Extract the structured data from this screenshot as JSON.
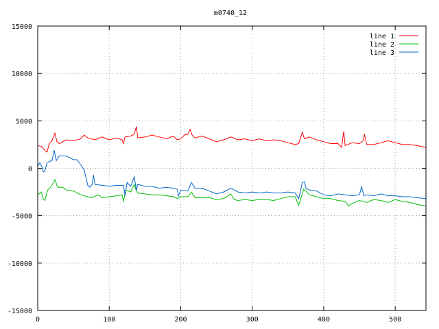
{
  "chart_data": {
    "type": "line",
    "title": "m0740_12",
    "xlabel": "",
    "ylabel": "",
    "xlim": [
      0,
      543
    ],
    "ylim": [
      -15000,
      15000
    ],
    "xticks": [
      0,
      100,
      200,
      300,
      400,
      500
    ],
    "yticks": [
      -15000,
      -10000,
      -5000,
      0,
      5000,
      10000,
      15000
    ],
    "grid": true,
    "legend_position": "top-right",
    "series": [
      {
        "name": "line 1",
        "color": "#ff0000",
        "points": [
          [
            0,
            2400
          ],
          [
            5,
            2300
          ],
          [
            10,
            1900
          ],
          [
            13,
            1700
          ],
          [
            16,
            2600
          ],
          [
            20,
            2900
          ],
          [
            24,
            3700
          ],
          [
            27,
            2800
          ],
          [
            30,
            2600
          ],
          [
            40,
            3000
          ],
          [
            50,
            2900
          ],
          [
            60,
            3100
          ],
          [
            65,
            3500
          ],
          [
            70,
            3200
          ],
          [
            80,
            3000
          ],
          [
            90,
            3300
          ],
          [
            100,
            3000
          ],
          [
            110,
            3200
          ],
          [
            118,
            3000
          ],
          [
            120,
            2600
          ],
          [
            122,
            3300
          ],
          [
            130,
            3400
          ],
          [
            135,
            3600
          ],
          [
            138,
            4400
          ],
          [
            140,
            3200
          ],
          [
            150,
            3300
          ],
          [
            160,
            3500
          ],
          [
            170,
            3300
          ],
          [
            180,
            3100
          ],
          [
            190,
            3400
          ],
          [
            195,
            3000
          ],
          [
            200,
            3100
          ],
          [
            205,
            3500
          ],
          [
            210,
            3600
          ],
          [
            213,
            4100
          ],
          [
            216,
            3500
          ],
          [
            220,
            3200
          ],
          [
            230,
            3400
          ],
          [
            240,
            3100
          ],
          [
            250,
            2800
          ],
          [
            260,
            3000
          ],
          [
            270,
            3300
          ],
          [
            280,
            3000
          ],
          [
            290,
            3100
          ],
          [
            300,
            2900
          ],
          [
            310,
            3100
          ],
          [
            320,
            2900
          ],
          [
            330,
            3000
          ],
          [
            340,
            2900
          ],
          [
            350,
            2700
          ],
          [
            360,
            2500
          ],
          [
            365,
            2600
          ],
          [
            370,
            3800
          ],
          [
            373,
            3100
          ],
          [
            380,
            3300
          ],
          [
            390,
            3000
          ],
          [
            400,
            2800
          ],
          [
            410,
            2600
          ],
          [
            420,
            2600
          ],
          [
            425,
            2200
          ],
          [
            428,
            3900
          ],
          [
            430,
            2400
          ],
          [
            440,
            2700
          ],
          [
            450,
            2600
          ],
          [
            455,
            2900
          ],
          [
            457,
            3600
          ],
          [
            460,
            2500
          ],
          [
            470,
            2500
          ],
          [
            480,
            2700
          ],
          [
            490,
            2900
          ],
          [
            500,
            2700
          ],
          [
            510,
            2500
          ],
          [
            520,
            2500
          ],
          [
            530,
            2400
          ],
          [
            543,
            2200
          ]
        ]
      },
      {
        "name": "line 2",
        "color": "#00bb00",
        "points": [
          [
            0,
            -2800
          ],
          [
            5,
            -2500
          ],
          [
            8,
            -3300
          ],
          [
            10,
            -3400
          ],
          [
            14,
            -2300
          ],
          [
            18,
            -2000
          ],
          [
            22,
            -1500
          ],
          [
            24,
            -1200
          ],
          [
            28,
            -2000
          ],
          [
            35,
            -2000
          ],
          [
            40,
            -2300
          ],
          [
            50,
            -2400
          ],
          [
            60,
            -2800
          ],
          [
            70,
            -3000
          ],
          [
            75,
            -3100
          ],
          [
            78,
            -3000
          ],
          [
            85,
            -2800
          ],
          [
            90,
            -3100
          ],
          [
            100,
            -3000
          ],
          [
            110,
            -2900
          ],
          [
            118,
            -2800
          ],
          [
            120,
            -3500
          ],
          [
            123,
            -2300
          ],
          [
            130,
            -2500
          ],
          [
            135,
            -1700
          ],
          [
            137,
            -2200
          ],
          [
            140,
            -2600
          ],
          [
            150,
            -2700
          ],
          [
            160,
            -2800
          ],
          [
            170,
            -2800
          ],
          [
            180,
            -2900
          ],
          [
            190,
            -3000
          ],
          [
            195,
            -3200
          ],
          [
            200,
            -3000
          ],
          [
            210,
            -3000
          ],
          [
            215,
            -2500
          ],
          [
            220,
            -3100
          ],
          [
            230,
            -3100
          ],
          [
            240,
            -3100
          ],
          [
            250,
            -3300
          ],
          [
            260,
            -3200
          ],
          [
            270,
            -2700
          ],
          [
            275,
            -3300
          ],
          [
            280,
            -3400
          ],
          [
            290,
            -3300
          ],
          [
            300,
            -3400
          ],
          [
            310,
            -3300
          ],
          [
            320,
            -3300
          ],
          [
            330,
            -3400
          ],
          [
            340,
            -3200
          ],
          [
            350,
            -3000
          ],
          [
            360,
            -3000
          ],
          [
            365,
            -3900
          ],
          [
            368,
            -3200
          ],
          [
            372,
            -2200
          ],
          [
            375,
            -2400
          ],
          [
            380,
            -2800
          ],
          [
            390,
            -3000
          ],
          [
            400,
            -3200
          ],
          [
            410,
            -3200
          ],
          [
            420,
            -3400
          ],
          [
            430,
            -3500
          ],
          [
            435,
            -4000
          ],
          [
            440,
            -3700
          ],
          [
            450,
            -3400
          ],
          [
            460,
            -3600
          ],
          [
            470,
            -3300
          ],
          [
            480,
            -3400
          ],
          [
            490,
            -3600
          ],
          [
            500,
            -3300
          ],
          [
            510,
            -3500
          ],
          [
            520,
            -3600
          ],
          [
            530,
            -3800
          ],
          [
            543,
            -4000
          ]
        ]
      },
      {
        "name": "line 3",
        "color": "#0066cc",
        "points": [
          [
            0,
            200
          ],
          [
            3,
            600
          ],
          [
            6,
            100
          ],
          [
            8,
            -400
          ],
          [
            10,
            -300
          ],
          [
            13,
            600
          ],
          [
            16,
            700
          ],
          [
            20,
            800
          ],
          [
            23,
            1900
          ],
          [
            26,
            800
          ],
          [
            30,
            1300
          ],
          [
            40,
            1300
          ],
          [
            50,
            900
          ],
          [
            55,
            900
          ],
          [
            60,
            400
          ],
          [
            65,
            -200
          ],
          [
            70,
            -1800
          ],
          [
            73,
            -2000
          ],
          [
            76,
            -1700
          ],
          [
            78,
            -700
          ],
          [
            80,
            -1700
          ],
          [
            90,
            -1800
          ],
          [
            100,
            -1900
          ],
          [
            110,
            -1800
          ],
          [
            120,
            -1800
          ],
          [
            122,
            -2900
          ],
          [
            125,
            -1500
          ],
          [
            130,
            -1900
          ],
          [
            135,
            -900
          ],
          [
            138,
            -2300
          ],
          [
            140,
            -1700
          ],
          [
            150,
            -1900
          ],
          [
            160,
            -1900
          ],
          [
            170,
            -2100
          ],
          [
            180,
            -2000
          ],
          [
            190,
            -2100
          ],
          [
            195,
            -2200
          ],
          [
            197,
            -2900
          ],
          [
            200,
            -2300
          ],
          [
            210,
            -2400
          ],
          [
            215,
            -1500
          ],
          [
            220,
            -2100
          ],
          [
            230,
            -2100
          ],
          [
            240,
            -2400
          ],
          [
            250,
            -2700
          ],
          [
            260,
            -2500
          ],
          [
            270,
            -2100
          ],
          [
            280,
            -2500
          ],
          [
            290,
            -2600
          ],
          [
            300,
            -2500
          ],
          [
            310,
            -2600
          ],
          [
            320,
            -2500
          ],
          [
            330,
            -2600
          ],
          [
            340,
            -2600
          ],
          [
            350,
            -2500
          ],
          [
            360,
            -2600
          ],
          [
            365,
            -3200
          ],
          [
            370,
            -1500
          ],
          [
            373,
            -1400
          ],
          [
            375,
            -2100
          ],
          [
            380,
            -2300
          ],
          [
            390,
            -2400
          ],
          [
            400,
            -2800
          ],
          [
            410,
            -2900
          ],
          [
            420,
            -2700
          ],
          [
            430,
            -2800
          ],
          [
            440,
            -2900
          ],
          [
            450,
            -2800
          ],
          [
            453,
            -1900
          ],
          [
            456,
            -2900
          ],
          [
            460,
            -2800
          ],
          [
            470,
            -2900
          ],
          [
            480,
            -2700
          ],
          [
            490,
            -2900
          ],
          [
            500,
            -2900
          ],
          [
            510,
            -3000
          ],
          [
            520,
            -3000
          ],
          [
            530,
            -3100
          ],
          [
            543,
            -3200
          ]
        ]
      }
    ]
  }
}
